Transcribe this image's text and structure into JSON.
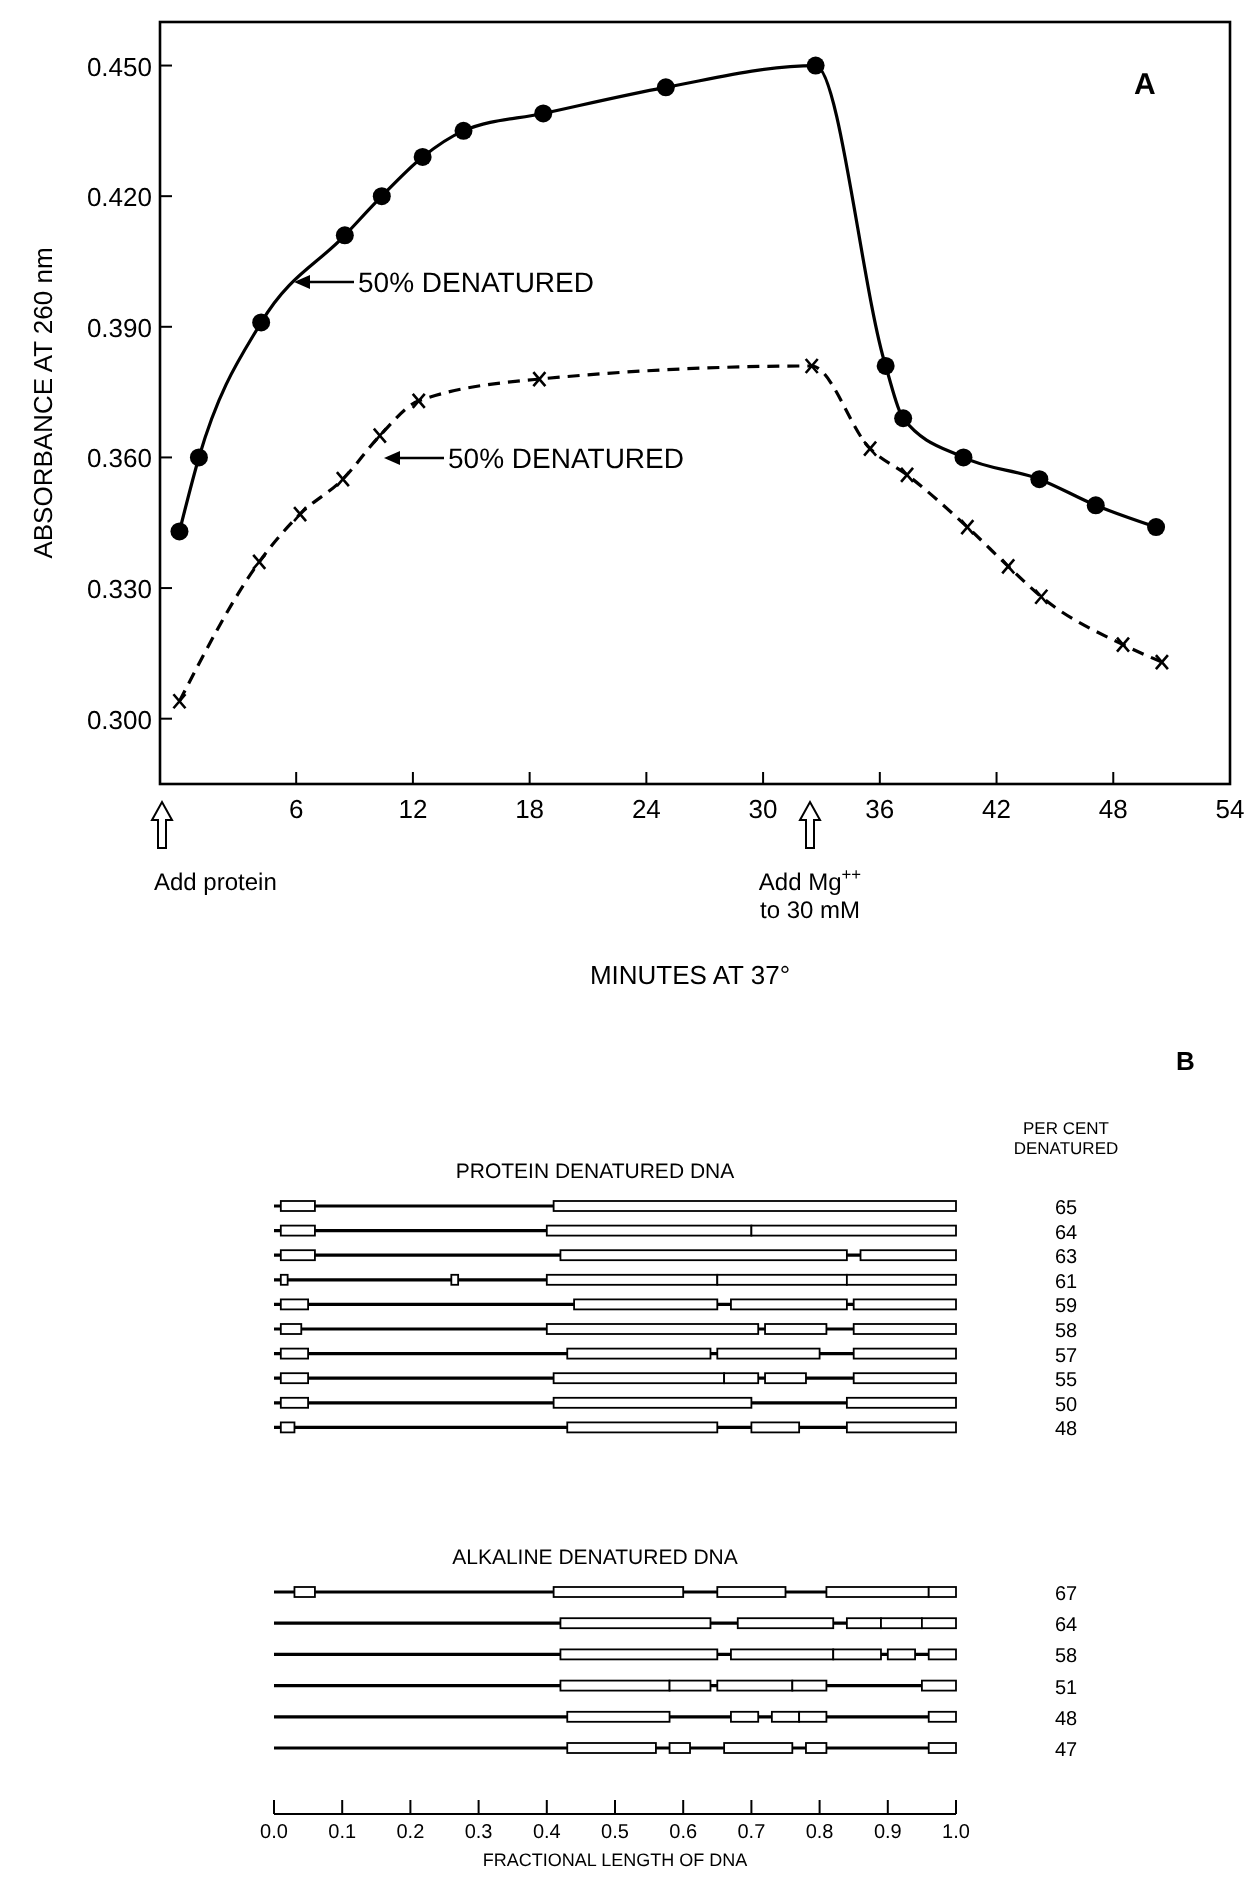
{
  "chart_data": [
    {
      "type": "line",
      "xlabel": "MINUTES AT 37°",
      "ylabel": "ABSORBANCE AT 260 nm",
      "xlim": [
        -1,
        54
      ],
      "ylim": [
        0.285,
        0.46
      ],
      "xticks": [
        6,
        12,
        18,
        24,
        30,
        36,
        42,
        48,
        54
      ],
      "yticks": [
        {
          "value": 0.3,
          "label": "0.300"
        },
        {
          "value": 0.33,
          "label": "0.330"
        },
        {
          "value": 0.36,
          "label": "0.360"
        },
        {
          "value": 0.39,
          "label": "0.390"
        },
        {
          "value": 0.42,
          "label": "0.420"
        },
        {
          "value": 0.45,
          "label": "0.450"
        }
      ],
      "series": [
        {
          "color": "#000000",
          "marker": "circle",
          "line_style": "solid",
          "x": [
            0,
            1,
            4.2,
            8.5,
            10.4,
            12.5,
            14.6,
            18.7,
            25,
            32.7,
            36.3,
            37.2,
            40.3,
            44.2,
            47.1,
            50.2
          ],
          "values": [
            0.343,
            0.36,
            0.391,
            0.411,
            0.42,
            0.429,
            0.435,
            0.439,
            0.445,
            0.45,
            0.381,
            0.369,
            0.36,
            0.355,
            0.349,
            0.344
          ]
        },
        {
          "color": "#000000",
          "marker": "cross",
          "line_style": "dashed",
          "x": [
            0,
            4.1,
            6.2,
            8.4,
            10.3,
            12.3,
            18.5,
            32.5,
            35.5,
            37.4,
            40.5,
            42.6,
            44.3,
            48.5,
            50.5
          ],
          "values": [
            0.304,
            0.336,
            0.347,
            0.355,
            0.365,
            0.373,
            0.378,
            0.381,
            0.362,
            0.356,
            0.344,
            0.335,
            0.328,
            0.317,
            0.313
          ]
        }
      ],
      "annotations": [
        "A",
        "50% DENATURED",
        "50% DENATURED",
        "Add protein",
        "Add Mg$^{++}$ to 30 mM"
      ]
    },
    {
      "type": "bar",
      "orientation": "horizontal",
      "title": "PROTEIN DENATURED DNA",
      "ylabel": "PER CENT DENATURED",
      "categories": [
        "65",
        "64",
        "63",
        "61",
        "59",
        "58",
        "57",
        "55",
        "50",
        "48"
      ],
      "xlim": [
        0,
        1
      ],
      "grid": "y",
      "tick_labels": "y",
      "annotations": [
        "B"
      ],
      "series": [
        {
          "color": "#ffffff",
          "base": [
            0.01,
            0.01,
            0.01,
            0.01,
            0.01,
            0.01,
            0.01,
            0.01,
            0.01,
            0.01
          ],
          "values": [
            0.05,
            0.05,
            0.05,
            0.01,
            0.04,
            0.03,
            0.04,
            0.04,
            0.04,
            0.02
          ]
        },
        {
          "color": "#ffffff",
          "base": [
            0.41,
            0.4,
            0.42,
            0.26,
            0.44,
            0.4,
            0.43,
            0.41,
            0.41,
            0.43
          ],
          "values": [
            0.59,
            0.3,
            0.42,
            0.01,
            0.21,
            0.31,
            0.21,
            0.25,
            0.29,
            0.22
          ]
        },
        {
          "color": "#ffffff",
          "base": [
            null,
            0.7,
            0.86,
            0.4,
            0.67,
            0.72,
            0.65,
            0.66,
            0.84,
            0.7
          ],
          "values": [
            null,
            0.3,
            0.14,
            0.25,
            0.17,
            0.09,
            0.15,
            0.05,
            0.16,
            0.07
          ]
        },
        {
          "color": "#ffffff",
          "base": [
            null,
            null,
            null,
            0.65,
            0.85,
            0.85,
            0.85,
            0.72,
            null,
            0.84
          ],
          "values": [
            null,
            null,
            null,
            0.19,
            0.15,
            0.15,
            0.15,
            0.06,
            null,
            0.16
          ]
        },
        {
          "color": "#ffffff",
          "base": [
            null,
            null,
            null,
            0.84,
            null,
            null,
            null,
            0.85,
            null,
            null
          ],
          "values": [
            null,
            null,
            null,
            0.16,
            null,
            null,
            null,
            0.15,
            null,
            null
          ]
        }
      ]
    },
    {
      "type": "bar",
      "orientation": "horizontal",
      "title": "ALKALINE DENATURED DNA",
      "xlabel": "FRACTIONAL LENGTH OF DNA",
      "categories": [
        "67",
        "64",
        "58",
        "51",
        "48",
        "47"
      ],
      "xlim": [
        0,
        1
      ],
      "xticks": [
        {
          "value": 0,
          "label": "0.0"
        },
        0.1,
        0.2,
        0.3,
        0.4,
        0.5,
        0.6,
        0.7,
        0.8,
        0.9,
        {
          "value": 1,
          "label": "1.0"
        }
      ],
      "grid": "y",
      "series": [
        {
          "color": "#ffffff",
          "base": [
            0.03,
            0.42,
            0.42,
            0.42,
            0.43,
            0.43
          ],
          "values": [
            0.03,
            0.22,
            0.23,
            0.16,
            0.15,
            0.13
          ]
        },
        {
          "color": "#ffffff",
          "base": [
            0.41,
            0.68,
            0.67,
            0.58,
            0.67,
            0.58
          ],
          "values": [
            0.19,
            0.14,
            0.15,
            0.06,
            0.04,
            0.03
          ]
        },
        {
          "color": "#ffffff",
          "base": [
            0.65,
            0.84,
            0.82,
            0.65,
            0.73,
            0.66
          ],
          "values": [
            0.1,
            0.05,
            0.07,
            0.11,
            0.04,
            0.1
          ]
        },
        {
          "color": "#ffffff",
          "base": [
            0.81,
            0.89,
            0.9,
            0.76,
            0.77,
            0.78
          ],
          "values": [
            0.15,
            0.06,
            0.04,
            0.05,
            0.04,
            0.03
          ]
        },
        {
          "color": "#ffffff",
          "base": [
            0.96,
            0.95,
            0.96,
            0.95,
            0.96,
            0.96
          ],
          "values": [
            0.04,
            0.05,
            0.04,
            0.05,
            0.04,
            0.04
          ]
        }
      ]
    }
  ]
}
